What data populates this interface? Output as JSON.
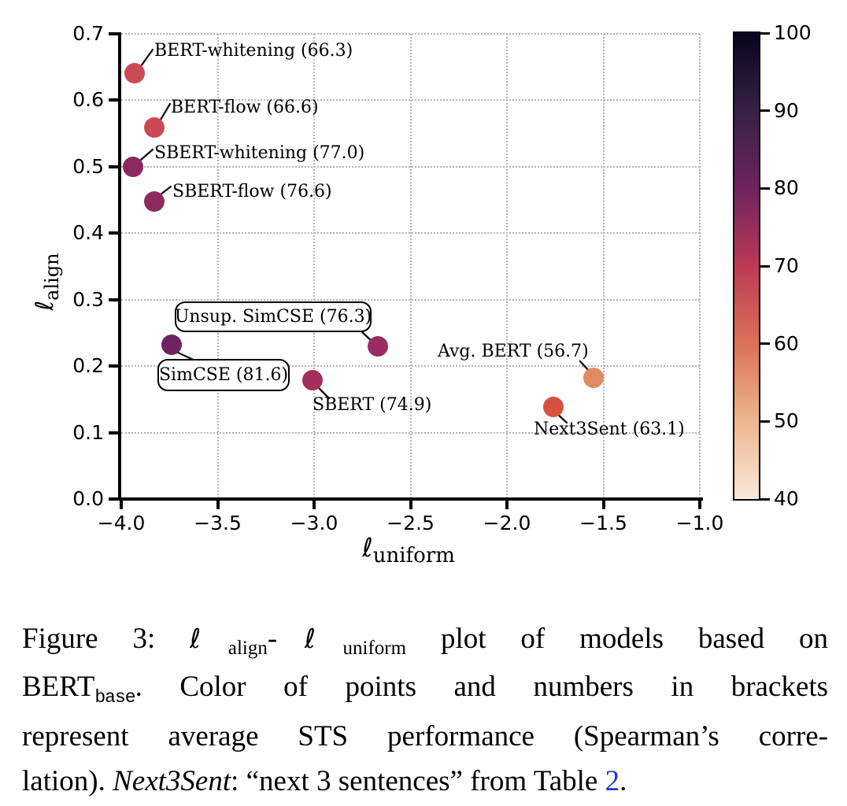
{
  "chart_data": {
    "type": "scatter",
    "xlabel": "ℓ_uniform",
    "ylabel": "ℓ_align",
    "xlabel_ell": "ℓ",
    "xlabel_sub": "uniform",
    "ylabel_ell": "ℓ",
    "ylabel_sub": "align",
    "xlim": [
      -4.0,
      -1.0
    ],
    "ylim": [
      0.0,
      0.7
    ],
    "grid": "dotted",
    "xticks": [
      "−4.0",
      "−3.5",
      "−3.0",
      "−2.5",
      "−2.0",
      "−1.5",
      "−1.0"
    ],
    "xtick_values": [
      -4.0,
      -3.5,
      -3.0,
      -2.5,
      -2.0,
      -1.5,
      -1.0
    ],
    "yticks": [
      "0.0",
      "0.1",
      "0.2",
      "0.3",
      "0.4",
      "0.5",
      "0.6",
      "0.7"
    ],
    "ytick_values": [
      0.0,
      0.1,
      0.2,
      0.3,
      0.4,
      0.5,
      0.6,
      0.7
    ],
    "points": [
      {
        "id": "bert-whitening",
        "name": "BERT-whitening",
        "score": 66.3,
        "label": "BERT-whitening (66.3)",
        "x": -3.93,
        "y": 0.64,
        "color": "#cb4a55",
        "boxed": false
      },
      {
        "id": "bert-flow",
        "name": "BERT-flow",
        "score": 66.6,
        "label": "BERT-flow (66.6)",
        "x": -3.83,
        "y": 0.558,
        "color": "#cb4955",
        "boxed": false
      },
      {
        "id": "sbert-whitening",
        "name": "SBERT-whitening",
        "score": 77.0,
        "label": "SBERT-whitening (77.0)",
        "x": -3.94,
        "y": 0.5,
        "color": "#8b2a5e",
        "boxed": false
      },
      {
        "id": "sbert-flow",
        "name": "SBERT-flow",
        "score": 76.6,
        "label": "SBERT-flow (76.6)",
        "x": -3.83,
        "y": 0.447,
        "color": "#8e2b5e",
        "boxed": false
      },
      {
        "id": "simcse",
        "name": "SimCSE",
        "score": 81.6,
        "label": "SimCSE (81.6)",
        "x": -3.74,
        "y": 0.232,
        "color": "#70235f",
        "boxed": true
      },
      {
        "id": "unsup-simcse",
        "name": "Unsup. SimCSE",
        "score": 76.3,
        "label": "Unsup. SimCSE (76.3)",
        "x": -2.67,
        "y": 0.229,
        "color": "#992c62",
        "boxed": true
      },
      {
        "id": "sbert",
        "name": "SBERT",
        "score": 74.9,
        "label": "SBERT (74.9)",
        "x": -3.01,
        "y": 0.179,
        "color": "#a52e5f",
        "boxed": false
      },
      {
        "id": "avg-bert",
        "name": "Avg. BERT",
        "score": 56.7,
        "label": "Avg. BERT (56.7)",
        "x": -1.55,
        "y": 0.182,
        "color": "#e08a64",
        "boxed": false
      },
      {
        "id": "next3sent",
        "name": "Next3Sent",
        "score": 63.1,
        "label": "Next3Sent (63.1)",
        "x": -1.76,
        "y": 0.138,
        "color": "#d4523f",
        "boxed": false
      }
    ],
    "colorbar": {
      "min": 40,
      "max": 100,
      "tick_labels": [
        "100",
        "90",
        "80",
        "70",
        "60",
        "50",
        "40"
      ],
      "tick_values": [
        100,
        90,
        80,
        70,
        60,
        50,
        40
      ],
      "colormap": "rocket",
      "gradient_stops_top_to_bottom": [
        "#08051e",
        "#372144",
        "#6f2360",
        "#bc3a55",
        "#db7257",
        "#eeb68d",
        "#f9e8d9"
      ]
    }
  },
  "caption": {
    "line1": {
      "prefix": "Figure 3:",
      "ell1": "ℓ",
      "sub1": "align",
      "dash": "-",
      "ell2": "ℓ",
      "sub2": "uniform",
      "rest": "plot of models based on"
    },
    "line2": {
      "bert": "BERT",
      "sub": "base",
      "rest": ".  Color of points and numbers in brackets"
    },
    "line3": "represent average STS performance (Spearman’s corre-",
    "line4": {
      "pre": "lation). ",
      "italic": "Next3Sent",
      "mid": ": “next 3 sentences” from Table ",
      "link": "2",
      "end": "."
    },
    "link_color": "#2233cc"
  }
}
